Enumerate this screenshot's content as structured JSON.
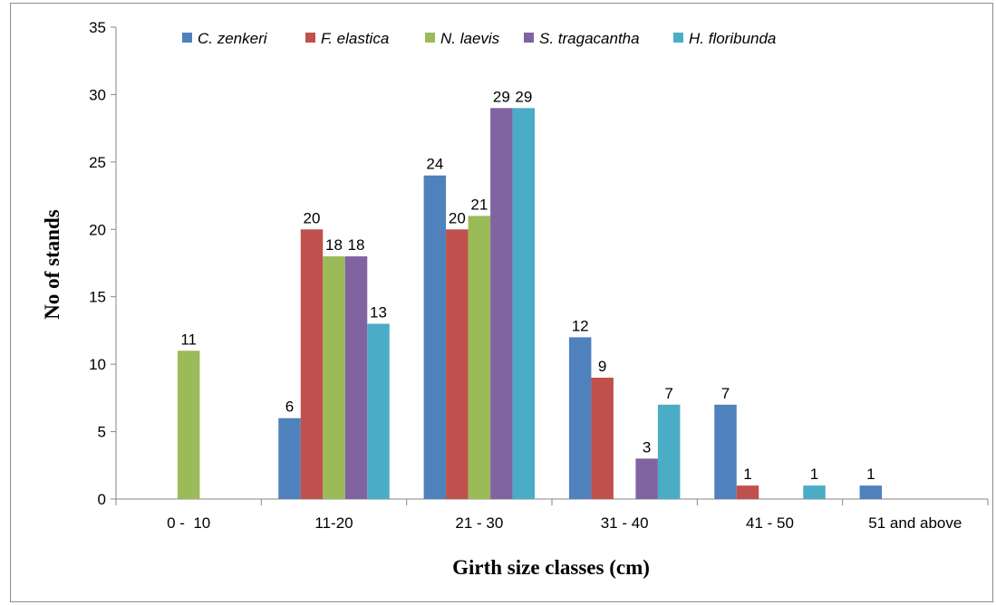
{
  "chart_data": {
    "type": "bar",
    "title": "",
    "xlabel": "Girth size classes (cm)",
    "ylabel": "No of stands",
    "ylim": [
      0,
      35
    ],
    "yticks": [
      0,
      5,
      10,
      15,
      20,
      25,
      30,
      35
    ],
    "grid": false,
    "legend_position": "top",
    "categories": [
      "0 -  10",
      "11-20",
      "21 - 30",
      "31 - 40",
      "41 - 50",
      "51 and above"
    ],
    "series": [
      {
        "name": "C. zenkeri",
        "color": "#4f81bd",
        "values": [
          0,
          6,
          24,
          12,
          7,
          1
        ]
      },
      {
        "name": "F. elastica",
        "color": "#c0504d",
        "values": [
          0,
          20,
          20,
          9,
          1,
          0
        ]
      },
      {
        "name": "N. laevis",
        "color": "#9bbb59",
        "values": [
          11,
          18,
          21,
          0,
          0,
          0
        ]
      },
      {
        "name": "S. tragacantha",
        "color": "#8064a2",
        "values": [
          0,
          18,
          29,
          3,
          0,
          0
        ]
      },
      {
        "name": "H. floribunda",
        "color": "#4bacc6",
        "values": [
          0,
          13,
          29,
          7,
          1,
          0
        ]
      }
    ]
  }
}
